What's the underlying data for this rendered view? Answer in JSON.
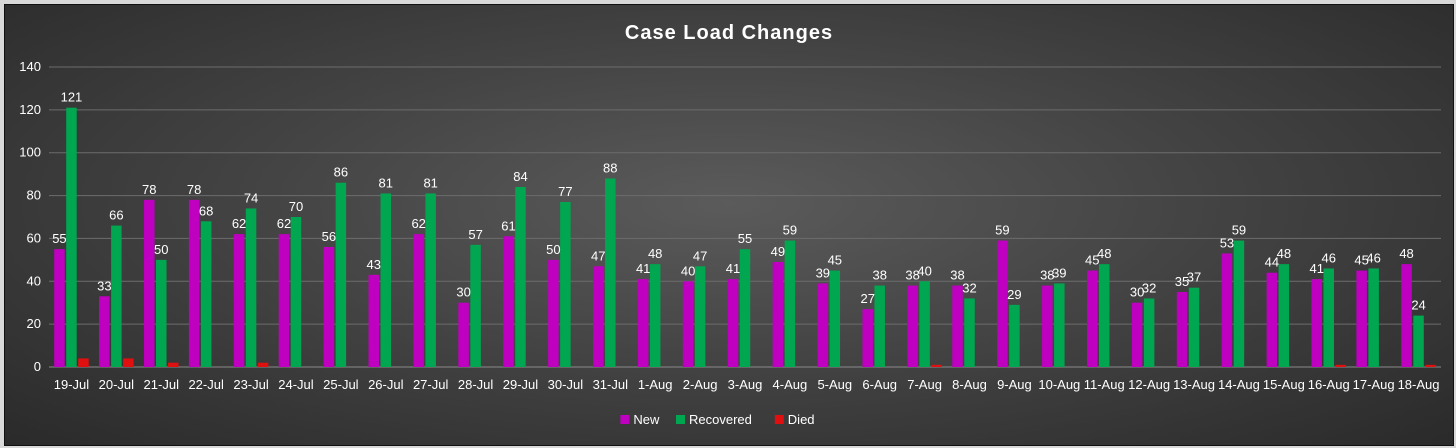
{
  "chart_data": {
    "type": "bar",
    "title": "Case Load Changes",
    "xlabel": "",
    "ylabel": "",
    "ylim": [
      0,
      140
    ],
    "yticks": [
      0,
      20,
      40,
      60,
      80,
      100,
      120,
      140
    ],
    "grid": true,
    "legend_position": "bottom",
    "categories": [
      "19-Jul",
      "20-Jul",
      "21-Jul",
      "22-Jul",
      "23-Jul",
      "24-Jul",
      "25-Jul",
      "26-Jul",
      "27-Jul",
      "28-Jul",
      "29-Jul",
      "30-Jul",
      "31-Jul",
      "1-Aug",
      "2-Aug",
      "3-Aug",
      "4-Aug",
      "5-Aug",
      "6-Aug",
      "7-Aug",
      "8-Aug",
      "9-Aug",
      "10-Aug",
      "11-Aug",
      "12-Aug",
      "13-Aug",
      "14-Aug",
      "15-Aug",
      "16-Aug",
      "17-Aug",
      "18-Aug"
    ],
    "series": [
      {
        "name": "New",
        "color": "#c000c0",
        "values": [
          55,
          33,
          78,
          78,
          62,
          62,
          56,
          43,
          62,
          30,
          61,
          50,
          47,
          41,
          40,
          41,
          49,
          39,
          27,
          38,
          38,
          59,
          38,
          45,
          30,
          35,
          53,
          44,
          41,
          45,
          48
        ]
      },
      {
        "name": "Recovered",
        "color": "#00a650",
        "values": [
          121,
          66,
          50,
          68,
          74,
          70,
          86,
          81,
          81,
          57,
          84,
          77,
          88,
          48,
          47,
          55,
          59,
          45,
          38,
          40,
          32,
          29,
          39,
          48,
          32,
          37,
          59,
          48,
          46,
          46,
          24
        ]
      },
      {
        "name": "Died",
        "color": "#e01010",
        "values": [
          4,
          4,
          2,
          0,
          2,
          0,
          0,
          0,
          0,
          0,
          0,
          0,
          0,
          0,
          0,
          0,
          0,
          0,
          0,
          1,
          0,
          0,
          0,
          0,
          0,
          0,
          0,
          0,
          1,
          0,
          1
        ]
      }
    ]
  }
}
